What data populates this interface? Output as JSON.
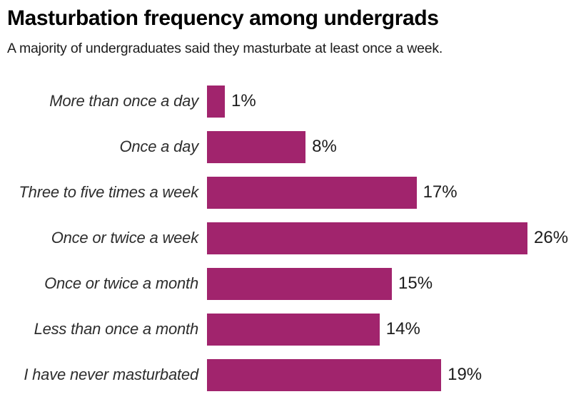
{
  "chart_data": {
    "type": "bar",
    "orientation": "horizontal",
    "title": "Masturbation frequency among undergrads",
    "subtitle": "A majority of undergraduates said they masturbate at least once a week.",
    "categories": [
      "More than once a day",
      "Once a day",
      "Three to five times a week",
      "Once or twice a week",
      "Once or twice a month",
      "Less than once a month",
      "I have never masturbated"
    ],
    "values": [
      1,
      8,
      17,
      26,
      15,
      14,
      19
    ],
    "value_labels": [
      "1%",
      "8%",
      "17%",
      "26%",
      "15%",
      "14%",
      "19%"
    ],
    "xlabel": "",
    "ylabel": "",
    "xlim": [
      0,
      26
    ],
    "grid": false,
    "legend": false,
    "bar_color": "#A1246D"
  },
  "colors": {
    "bar": "#A1246D",
    "title": "#000000",
    "subtitle": "#1c1c1c",
    "category_label": "#2d2d2d",
    "value_label": "#1c1c1c",
    "background": "#ffffff"
  }
}
